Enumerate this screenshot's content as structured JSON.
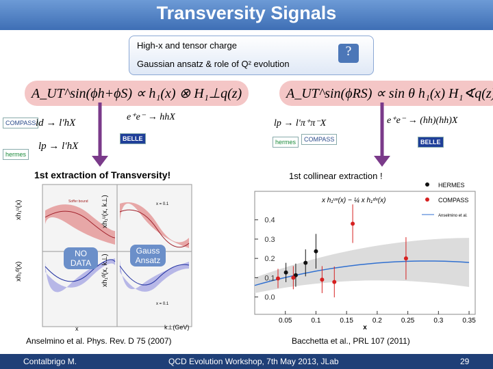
{
  "header": {
    "title": "Transversity Signals"
  },
  "info_box": {
    "lines": [
      "High-x and tensor charge",
      "Gaussian ansatz & role of Q² evolution"
    ],
    "icon": "?"
  },
  "left": {
    "formula": "A_UT^sin(ϕh+ϕS) ∝ h₁(x) ⊗ H₁⊥q(z)",
    "processes": [
      "ld → l′hX",
      "lp → l′hX",
      "e⁺e⁻ → hhX"
    ],
    "logos": [
      "COMPASS",
      "hermes",
      "BELLE"
    ],
    "caption": "1st extraction of Transversity!",
    "axis_labels": [
      "xh₁ᵘ(x)",
      "xh₁ᵈ(x)",
      "xh₁ᵘ(x, k⊥)",
      "xh₁ᵈ(x, k⊥)",
      "x",
      "k⊥(GeV)"
    ],
    "annotations": [
      "Soffer bound",
      "NO DATA",
      "Gauss Ansatz",
      "x = 0.1",
      "x = 0.1"
    ],
    "reference": "Anselmino et al. Phys. Rev. D 75 (2007)"
  },
  "right": {
    "formula": "A_UT^sin(ϕRS) ∝ sin θ h₁(x) H₁∢q(z)",
    "processes": [
      "lp → l′π⁺π⁻X",
      "e⁺e⁻ → (hh)(hh)X"
    ],
    "logos": [
      "hermes",
      "COMPASS",
      "BELLE"
    ],
    "caption": "1st collinear extraction !",
    "plot": {
      "inset_formula": "x h₁ᵘᵛ(x) − ¼ x h₁ᵈᵛ(x)",
      "x_label": "x",
      "xlim": [
        0,
        0.36
      ],
      "xticks": [
        0.05,
        0.1,
        0.15,
        0.2,
        0.25,
        0.3,
        0.35
      ],
      "ylim": [
        -0.09,
        0.53
      ],
      "yticks": [
        {
          "value": 0,
          "label": "0.0"
        },
        0.1,
        0.2,
        0.3,
        0.4
      ],
      "series": [
        {
          "name": "HERMES",
          "color": "#111111",
          "x": [
            0.051,
            0.067,
            0.083,
            0.1
          ],
          "y": [
            0.127,
            0.113,
            0.177,
            0.237
          ],
          "err": [
            0.05,
            0.06,
            0.07,
            0.09
          ]
        },
        {
          "name": "COMPASS",
          "color": "#d62020",
          "x": [
            0.038,
            0.063,
            0.11,
            0.13,
            0.16,
            0.247
          ],
          "y": [
            0.096,
            0.1,
            0.09,
            0.078,
            0.38,
            0.2
          ],
          "err": [
            0.05,
            0.06,
            0.07,
            0.08,
            0.1,
            0.11
          ]
        }
      ],
      "model_name": "Anselmino et al."
    },
    "reference": "Bacchetta et al., PRL 107 (2011)"
  },
  "footer": {
    "author": "Contalbrigo M.",
    "event": "QCD Evolution Workshop, 7th May 2013, JLab",
    "page": "29"
  }
}
